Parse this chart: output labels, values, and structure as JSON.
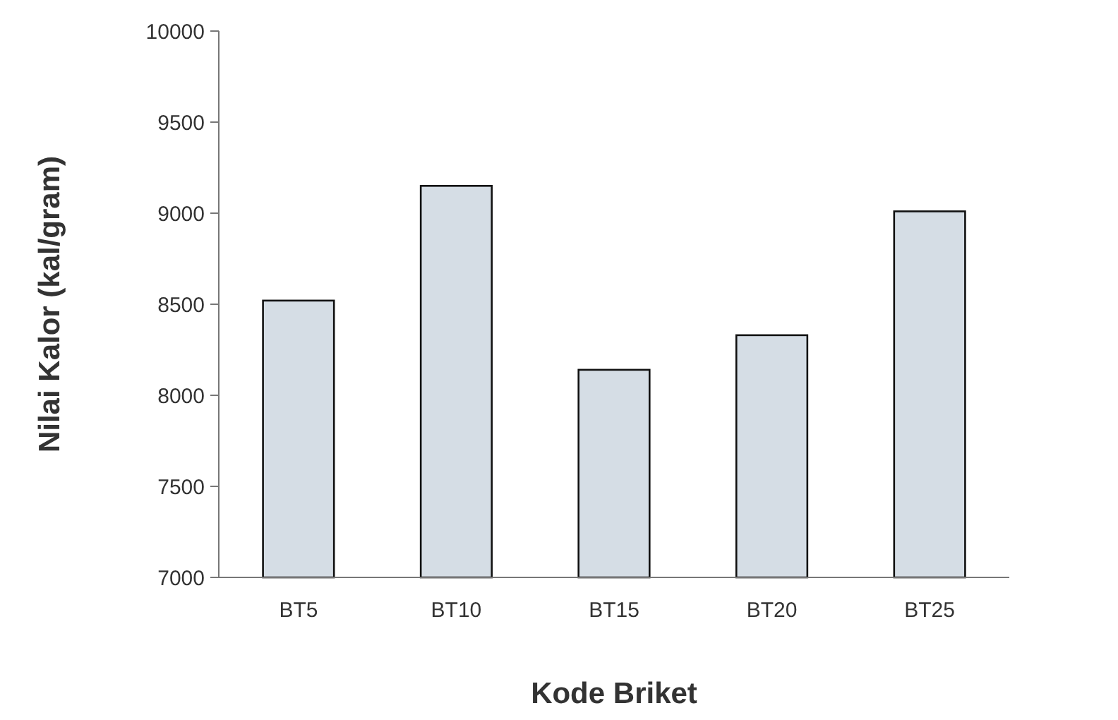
{
  "chart_data": {
    "type": "bar",
    "xlabel": "Kode Briket",
    "ylabel": "Nilai Kalor (kal/gram)",
    "categories": [
      "BT5",
      "BT10",
      "BT15",
      "BT20",
      "BT25"
    ],
    "values": [
      8520,
      9150,
      8140,
      8330,
      9010
    ],
    "color": "#d5dde5",
    "ylim": [
      7000,
      10000
    ],
    "yticks": [
      7000,
      7500,
      8000,
      8500,
      9000,
      9500,
      10000
    ],
    "grid": false
  }
}
